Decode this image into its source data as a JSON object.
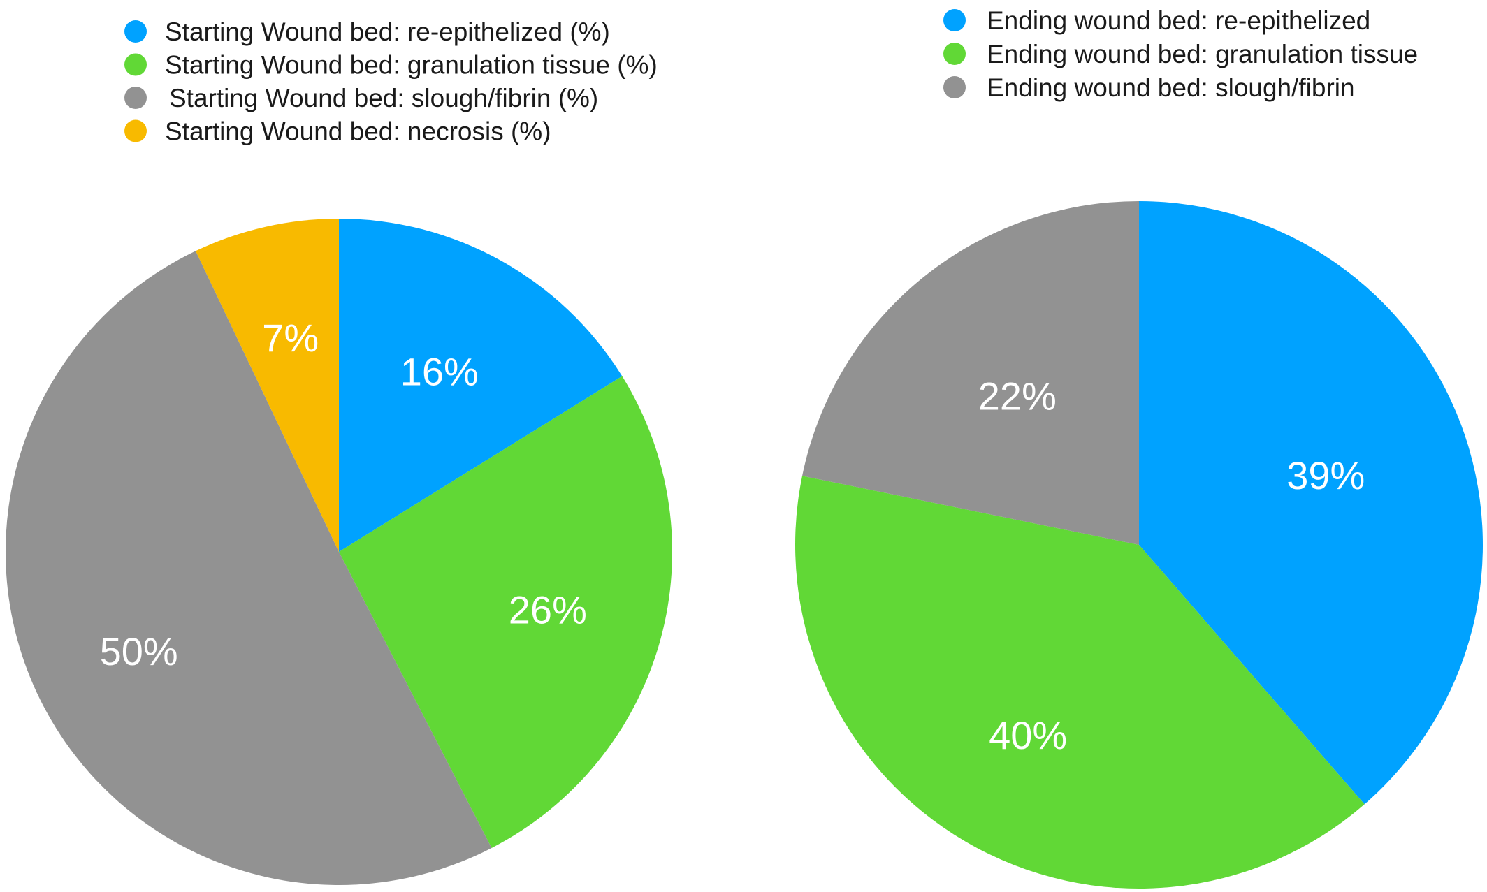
{
  "chart_data": [
    {
      "type": "pie",
      "title": "",
      "legend_position": "top",
      "series": [
        {
          "name": "Starting Wound bed: re-epithelized (%)",
          "value": 16,
          "label": "16%",
          "color": "#00a2ff"
        },
        {
          "name": "Starting Wound bed: granulation tissue (%)",
          "value": 26,
          "label": "26%",
          "color": "#61d836"
        },
        {
          "name": "Starting Wound bed: slough/fibrin (%)",
          "value": 50,
          "label": "50%",
          "color": "#929292"
        },
        {
          "name": "Starting Wound bed: necrosis (%)",
          "value": 7,
          "label": "7%",
          "color": "#f8ba00"
        }
      ]
    },
    {
      "type": "pie",
      "title": "",
      "legend_position": "top",
      "series": [
        {
          "name": "Ending wound bed: re-epithelized",
          "value": 39,
          "label": "39%",
          "color": "#00a2ff"
        },
        {
          "name": "Ending wound bed: granulation tissue",
          "value": 40,
          "label": "40%",
          "color": "#61d836"
        },
        {
          "name": "Ending wound bed: slough/fibrin",
          "value": 22,
          "label": "22%",
          "color": "#929292"
        }
      ]
    }
  ]
}
